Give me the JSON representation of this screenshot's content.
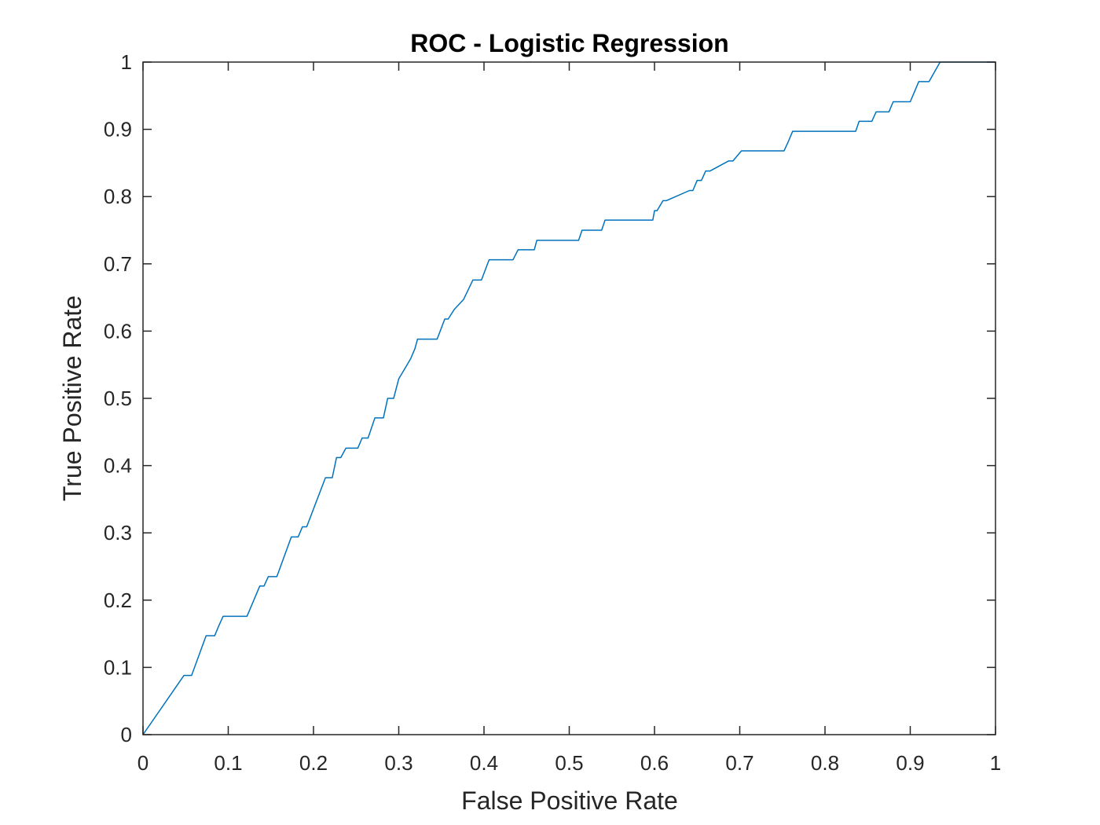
{
  "chart_data": {
    "type": "line",
    "title": "ROC - Logistic Regression",
    "xlabel": "False Positive Rate",
    "ylabel": "True Positive Rate",
    "xlim": [
      0,
      1
    ],
    "ylim": [
      0,
      1
    ],
    "xticks": [
      0,
      0.1,
      0.2,
      0.3,
      0.4,
      0.5,
      0.6,
      0.7,
      0.8,
      0.9,
      1
    ],
    "xtick_labels": [
      "0",
      "0.1",
      "0.2",
      "0.3",
      "0.4",
      "0.5",
      "0.6",
      "0.7",
      "0.8",
      "0.9",
      "1"
    ],
    "yticks": [
      0,
      0.1,
      0.2,
      0.3,
      0.4,
      0.5,
      0.6,
      0.7,
      0.8,
      0.9,
      1
    ],
    "ytick_labels": [
      "0",
      "0.1",
      "0.2",
      "0.3",
      "0.4",
      "0.5",
      "0.6",
      "0.7",
      "0.8",
      "0.9",
      "1"
    ],
    "grid": false,
    "legend": false,
    "series": [
      {
        "color": "#0072BD",
        "x": [
          0,
          0.048,
          0.057,
          0.074,
          0.084,
          0.089,
          0.094,
          0.122,
          0.137,
          0.142,
          0.147,
          0.157,
          0.174,
          0.182,
          0.187,
          0.192,
          0.214,
          0.222,
          0.227,
          0.232,
          0.238,
          0.252,
          0.257,
          0.264,
          0.272,
          0.282,
          0.287,
          0.294,
          0.3,
          0.307,
          0.314,
          0.319,
          0.322,
          0.345,
          0.354,
          0.358,
          0.365,
          0.376,
          0.387,
          0.397,
          0.406,
          0.434,
          0.44,
          0.459,
          0.462,
          0.511,
          0.515,
          0.538,
          0.542,
          0.598,
          0.6,
          0.603,
          0.61,
          0.614,
          0.641,
          0.645,
          0.65,
          0.655,
          0.66,
          0.665,
          0.687,
          0.692,
          0.702,
          0.707,
          0.752,
          0.757,
          0.762,
          0.836,
          0.84,
          0.855,
          0.86,
          0.875,
          0.88,
          0.9,
          0.905,
          0.91,
          0.922,
          0.935,
          1
        ],
        "y": [
          0,
          0.088,
          0.088,
          0.147,
          0.147,
          0.162,
          0.176,
          0.176,
          0.221,
          0.221,
          0.235,
          0.235,
          0.294,
          0.294,
          0.309,
          0.309,
          0.382,
          0.382,
          0.412,
          0.412,
          0.426,
          0.426,
          0.441,
          0.441,
          0.471,
          0.471,
          0.5,
          0.5,
          0.529,
          0.544,
          0.559,
          0.574,
          0.588,
          0.588,
          0.618,
          0.618,
          0.632,
          0.647,
          0.676,
          0.676,
          0.706,
          0.706,
          0.721,
          0.721,
          0.735,
          0.735,
          0.75,
          0.75,
          0.765,
          0.765,
          0.779,
          0.779,
          0.794,
          0.794,
          0.809,
          0.809,
          0.824,
          0.824,
          0.838,
          0.838,
          0.853,
          0.853,
          0.868,
          0.868,
          0.868,
          0.882,
          0.897,
          0.897,
          0.912,
          0.912,
          0.926,
          0.926,
          0.941,
          0.941,
          0.956,
          0.971,
          0.971,
          1,
          1
        ]
      }
    ]
  }
}
